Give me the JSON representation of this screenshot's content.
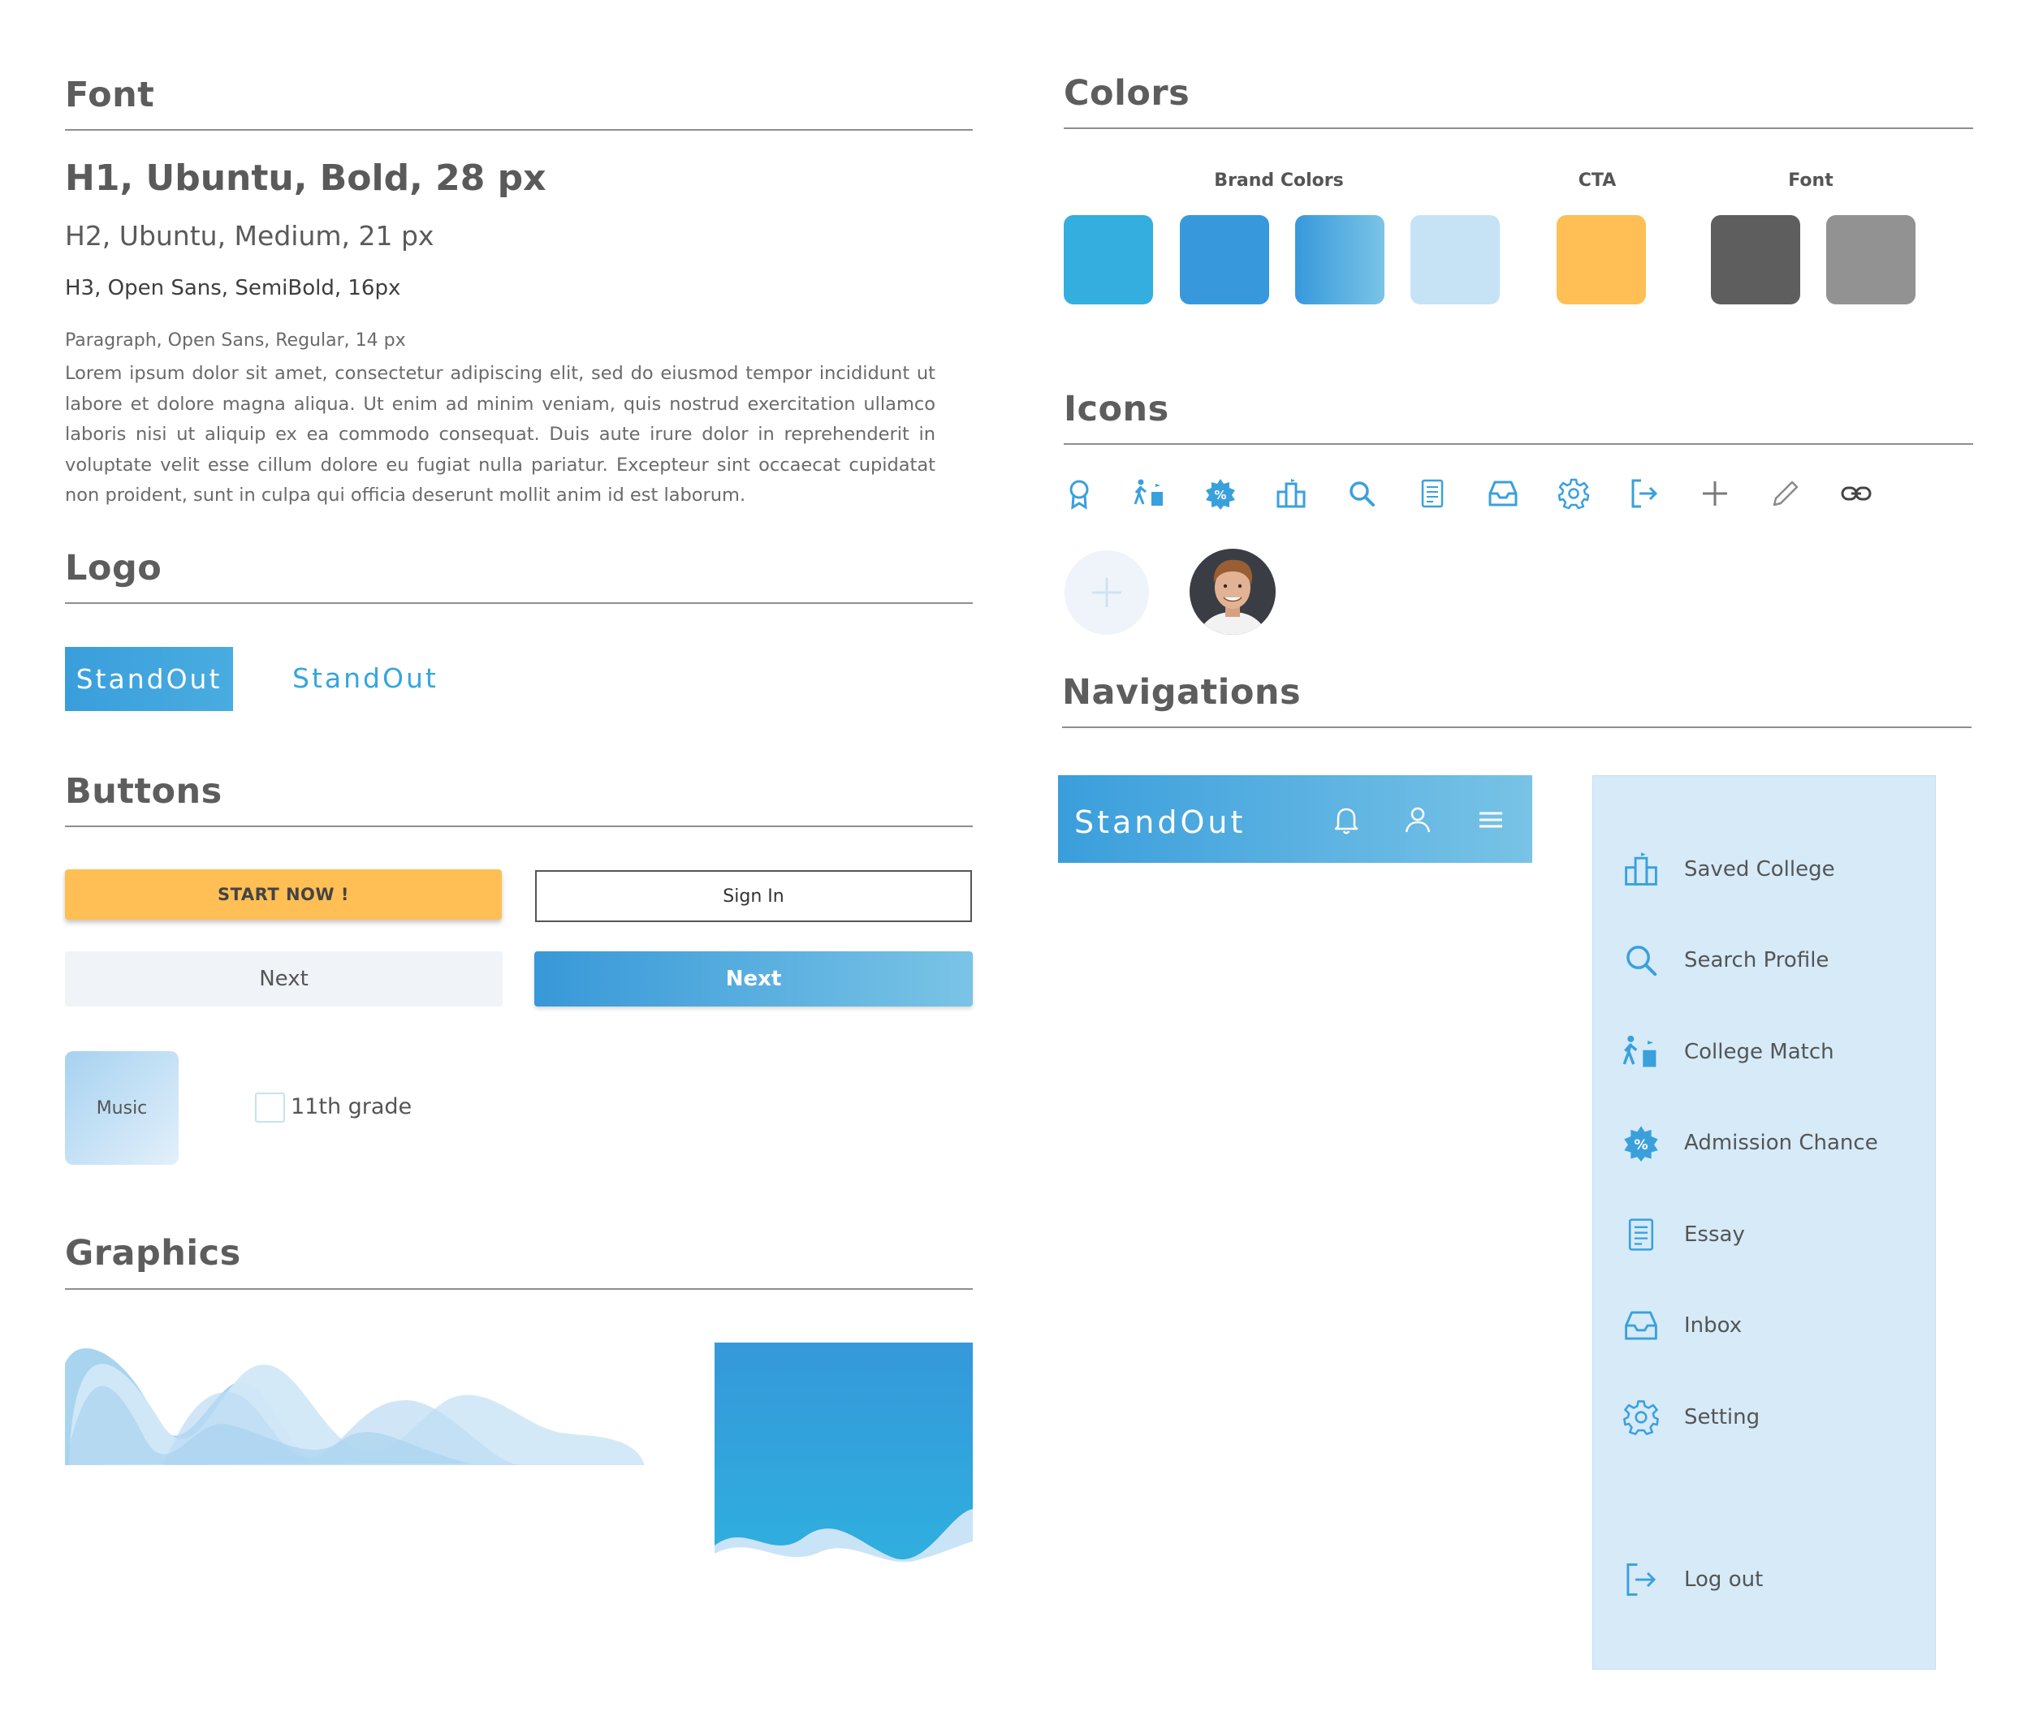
{
  "sections": {
    "font": "Font",
    "colors": "Colors",
    "logo": "Logo",
    "icons": "Icons",
    "buttons": "Buttons",
    "navigations": "Navigations",
    "graphics": "Graphics"
  },
  "font": {
    "h1": "H1, Ubuntu, Bold, 28 px",
    "h2": "H2, Ubuntu, Medium, 21 px",
    "h3": "H3, Open Sans, SemiBold, 16px",
    "paragraph_label": "Paragraph, Open Sans, Regular, 14 px",
    "paragraph": "Lorem ipsum dolor sit amet, consectetur adipiscing elit, sed do eiusmod tempor incididunt ut labore et dolore magna aliqua. Ut enim ad minim veniam, quis nostrud exercitation ullamco laboris nisi ut aliquip ex ea commodo consequat. Duis aute irure dolor in reprehenderit in voluptate velit esse cillum dolore eu fugiat nulla pariatur. Excepteur sint occaecat cupidatat non proident, sunt in culpa qui officia deserunt mollit anim id est laborum."
  },
  "colors": {
    "brand_label": "Brand Colors",
    "cta_label": "CTA",
    "font_label": "Font",
    "brand": [
      "#33aedf",
      "#3799dc",
      "#4aa8df",
      "#c6e3f5"
    ],
    "brand_gradient_end": "#7ac4e6",
    "cta": "#ffbf55",
    "font": [
      "#5e5e5e",
      "#929292"
    ]
  },
  "logo": {
    "text": "StandOut",
    "text_alt": "StandOut"
  },
  "icons": [
    "award-icon",
    "walk-college-icon",
    "badge-percent-icon",
    "college-icon",
    "search-icon",
    "essay-icon",
    "inbox-icon",
    "gear-icon",
    "logout-icon",
    "plus-icon",
    "pencil-icon",
    "link-icon"
  ],
  "buttons": {
    "start": "START NOW !",
    "signin": "Sign In",
    "next_grey": "Next",
    "next_blue": "Next",
    "tag": "Music",
    "checkbox": "11th grade"
  },
  "nav": {
    "brand": "StandOut",
    "sidebar": [
      {
        "label": "Saved College",
        "icon": "college-icon"
      },
      {
        "label": "Search Profile",
        "icon": "search-icon"
      },
      {
        "label": "College Match",
        "icon": "walk-college-icon"
      },
      {
        "label": "Admission Chance",
        "icon": "badge-percent-icon"
      },
      {
        "label": "Essay",
        "icon": "essay-icon"
      },
      {
        "label": "Inbox",
        "icon": "inbox-icon"
      },
      {
        "label": "Setting",
        "icon": "gear-icon"
      }
    ],
    "logout": "Log out"
  }
}
